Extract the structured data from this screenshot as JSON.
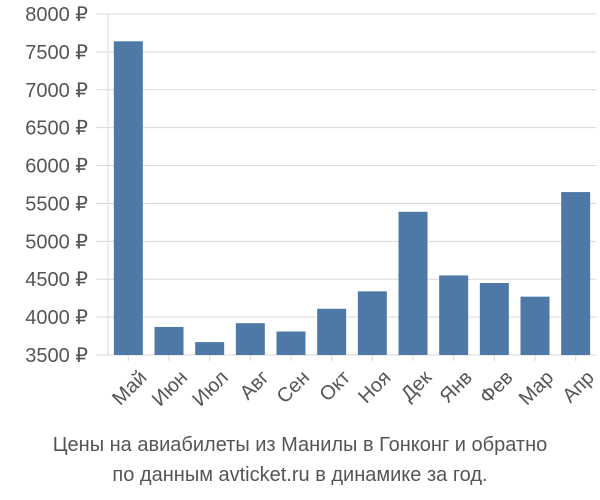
{
  "chart_data": {
    "type": "bar",
    "categories": [
      "Май",
      "Июн",
      "Июл",
      "Авг",
      "Сен",
      "Окт",
      "Ноя",
      "Дек",
      "Янв",
      "Фев",
      "Мар",
      "Апр"
    ],
    "values": [
      7640,
      3870,
      3670,
      3920,
      3810,
      4110,
      4340,
      5390,
      4550,
      4450,
      4270,
      5650
    ],
    "ylim": [
      3500,
      8000
    ],
    "yticks": [
      3500,
      4000,
      4500,
      5000,
      5500,
      6000,
      6500,
      7000,
      7500,
      8000
    ],
    "ytick_labels": [
      "3500 ₽",
      "4000 ₽",
      "4500 ₽",
      "5000 ₽",
      "5500 ₽",
      "6000 ₽",
      "6500 ₽",
      "7000 ₽",
      "7500 ₽",
      "8000 ₽"
    ],
    "grid": true,
    "bar_color": "#4e79a7"
  },
  "caption": {
    "line1": "Цены на авиабилеты из Манилы в Гонконг и обратно",
    "line2": "по данным avticket.ru в динамике за год."
  }
}
